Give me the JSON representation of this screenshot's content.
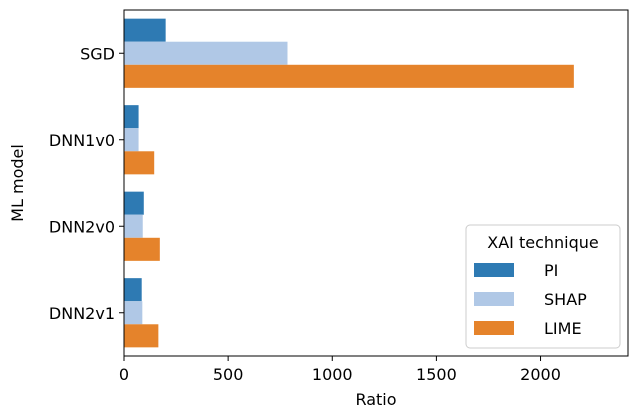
{
  "chart_data": {
    "type": "bar",
    "orientation": "horizontal",
    "categories": [
      "SGD",
      "DNN1v0",
      "DNN2v0",
      "DNN2v1"
    ],
    "series": [
      {
        "name": "PI",
        "values": [
          200,
          70,
          95,
          85
        ],
        "color": "#2e7ab3"
      },
      {
        "name": "SHAP",
        "values": [
          785,
          70,
          90,
          88
        ],
        "color": "#b0c8e6"
      },
      {
        "name": "LIME",
        "values": [
          2160,
          145,
          172,
          165
        ],
        "color": "#e5832b"
      }
    ],
    "xlabel": "Ratio",
    "ylabel": "ML model",
    "xlim": [
      0,
      2420
    ],
    "xticks": [
      0,
      500,
      1000,
      1500,
      2000
    ],
    "xtick_labels": [
      "0",
      "500",
      "1000",
      "1500",
      "2000"
    ],
    "grid": false,
    "legend": {
      "title": "XAI technique",
      "placement": "lower-right"
    }
  }
}
